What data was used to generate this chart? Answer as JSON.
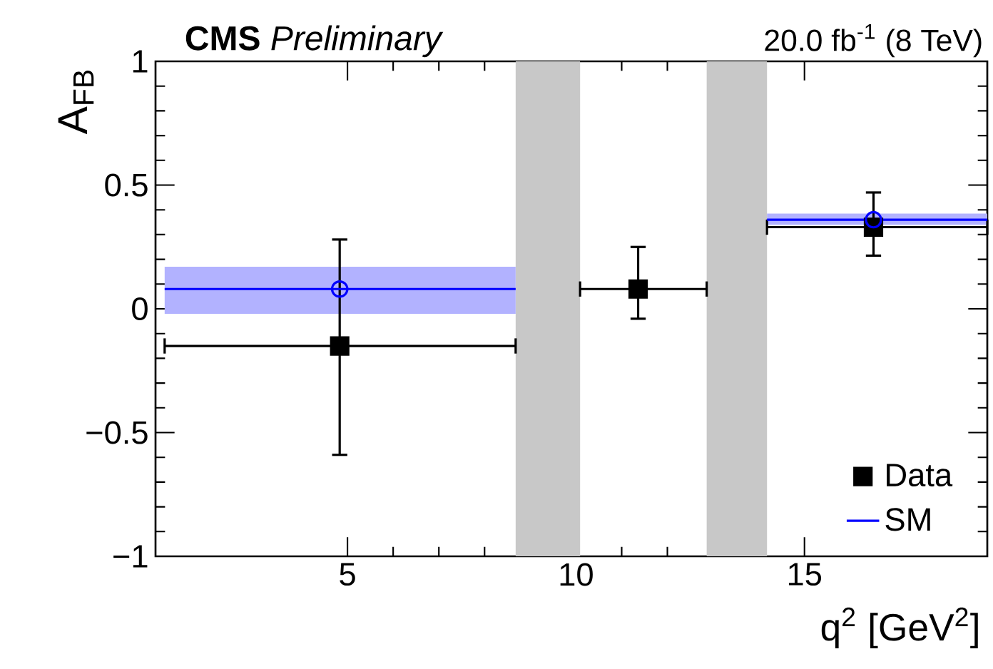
{
  "chart_data": {
    "type": "scatter",
    "title": "**CMS** *Preliminary*",
    "subtitle": "20.0 fb$^{-1}$ (8 TeV)",
    "xlabel": "q$^{2}$ [GeV$^{2}$]",
    "ylabel": "A$_{FB}$",
    "xlim": [
      0.8,
      19
    ],
    "ylim": [
      -1,
      1
    ],
    "xticks": [
      5,
      10,
      15
    ],
    "yticks": [
      {
        "value": -1,
        "label": "−1"
      },
      {
        "value": -0.5,
        "label": "−0.5"
      },
      0,
      0.5,
      1
    ],
    "bands": [
      {
        "axis": "x",
        "from": 8.68,
        "to": 10.09,
        "color": "#c8c8c8"
      },
      {
        "axis": "x",
        "from": 12.86,
        "to": 14.18,
        "color": "#c8c8c8"
      }
    ],
    "legend": "bottom right",
    "series": [
      {
        "name": "Data",
        "marker": "square",
        "color": "#000000",
        "x": [
          4.83,
          11.36,
          16.51
        ],
        "values": [
          -0.15,
          0.08,
          0.33
        ],
        "errors": [
          [
            -0.59,
            0.28
          ],
          [
            -0.04,
            0.25
          ],
          [
            0.215,
            0.47
          ]
        ],
        "xerrors": [
          [
            1,
            8.68
          ],
          [
            10.09,
            12.86
          ],
          [
            14.18,
            19
          ]
        ]
      },
      {
        "name": "SM",
        "type": "line",
        "marker": "none",
        "color": "#0000ff",
        "x": [
          1,
          8.68,
          11.4,
          14.18,
          19
        ],
        "values": [
          0.08,
          0.08,
          null,
          0.36,
          0.36
        ],
        "lower": [
          -0.02,
          -0.02,
          null,
          0.34,
          0.34
        ],
        "upper": [
          0.17,
          0.17,
          null,
          0.385,
          0.385
        ]
      },
      {
        "marker": "circle",
        "color": "#0000ff",
        "x": [
          4.83,
          16.51
        ],
        "values": [
          0.08,
          0.36
        ]
      }
    ]
  }
}
